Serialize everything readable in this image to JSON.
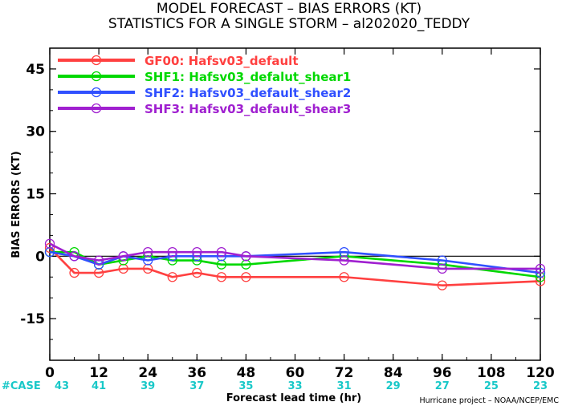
{
  "titles": {
    "line1": "MODEL FORECAST – BIAS ERRORS (KT)",
    "line2": "STATISTICS FOR A SINGLE STORM – al202020_TEDDY"
  },
  "case_label": "#CASE",
  "credit": "Hurricane project – NOAA/NCEP/EMC",
  "chart_data": {
    "type": "line",
    "xlabel": "Forecast lead time (hr)",
    "ylabel": "BIAS ERRORS (KT)",
    "xlim": [
      0,
      120
    ],
    "ylim": [
      -25,
      50
    ],
    "x_ticks": [
      0,
      12,
      24,
      36,
      48,
      60,
      72,
      84,
      96,
      108,
      120
    ],
    "y_ticks": [
      -15,
      0,
      15,
      30,
      45
    ],
    "zero_line": true,
    "grid": false,
    "legend_position": "top-left",
    "cases": [
      43,
      41,
      39,
      37,
      35,
      33,
      31,
      29,
      27,
      25,
      23
    ],
    "series": [
      {
        "name": "GF00: Hafsv03_default",
        "color": "#ff4040",
        "x": [
          0,
          6,
          12,
          18,
          24,
          30,
          36,
          42,
          48,
          72,
          96,
          120
        ],
        "y": [
          2,
          -4,
          -4,
          -3,
          -3,
          -5,
          -4,
          -5,
          -5,
          -5,
          -7,
          -6
        ]
      },
      {
        "name": "SHF1: Hafsv03_defalut_shear1",
        "color": "#00d800",
        "x": [
          0,
          6,
          12,
          18,
          24,
          30,
          36,
          42,
          48,
          72,
          96,
          120
        ],
        "y": [
          1,
          1,
          -2,
          -1,
          0,
          -1,
          -1,
          -2,
          -2,
          0,
          -2,
          -5
        ]
      },
      {
        "name": "SHF2: Hafsv03_default_shear2",
        "color": "#3050ff",
        "x": [
          0,
          6,
          12,
          18,
          24,
          30,
          36,
          42,
          48,
          72,
          96,
          120
        ],
        "y": [
          1,
          0,
          -2,
          0,
          -1,
          0,
          0,
          0,
          0,
          1,
          -1,
          -4
        ]
      },
      {
        "name": "SHF3: Hafsv03_default_shear3",
        "color": "#a020d0",
        "x": [
          0,
          6,
          12,
          18,
          24,
          30,
          36,
          42,
          48,
          72,
          96,
          120
        ],
        "y": [
          3,
          0,
          -1,
          0,
          1,
          1,
          1,
          1,
          0,
          -1,
          -3,
          -3
        ]
      }
    ]
  }
}
